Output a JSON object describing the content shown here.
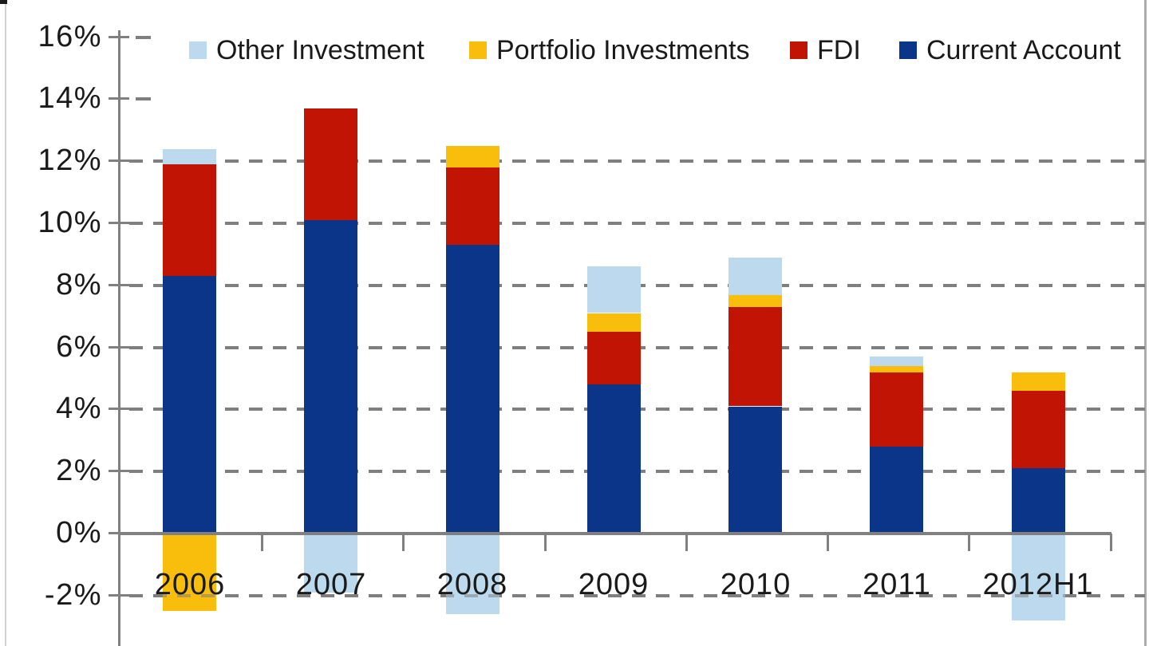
{
  "chart_data": {
    "type": "bar",
    "stacked": true,
    "title": "",
    "categories": [
      "2006",
      "2007",
      "2008",
      "2009",
      "2010",
      "2011",
      "2012H1"
    ],
    "series": [
      {
        "name": "Current Account",
        "color": "#0A3588",
        "values": [
          8.3,
          10.1,
          9.3,
          4.8,
          4.1,
          2.8,
          2.1
        ]
      },
      {
        "name": "FDI",
        "color": "#C11405",
        "values": [
          3.6,
          3.6,
          2.5,
          1.7,
          3.2,
          2.4,
          2.5
        ]
      },
      {
        "name": "Portfolio Investments",
        "color": "#F9BE0B",
        "values": [
          -2.5,
          0,
          0.7,
          0.6,
          0.4,
          0.2,
          0.6
        ]
      },
      {
        "name": "Other Investment",
        "color": "#BDD9EE",
        "values": [
          0.5,
          -1.9,
          -2.6,
          1.5,
          1.2,
          0.3,
          -2.8
        ]
      }
    ],
    "legend": {
      "position": "top",
      "entries": [
        "Other Investment",
        "Portfolio Investments",
        "FDI",
        "Current Account"
      ]
    },
    "y_axis": {
      "min": -3.2,
      "max": 16,
      "tick_step": 2,
      "unit": "%",
      "tick_labels": [
        "16%",
        "14%",
        "12%",
        "10%",
        "8%",
        "6%",
        "4%",
        "2%",
        "0%",
        "-2%"
      ]
    },
    "x_axis": {
      "labels": [
        "2006",
        "2007",
        "2008",
        "2009",
        "2010",
        "2011",
        "2012H1"
      ]
    },
    "grid": {
      "style": "dashed",
      "orientation": "horizontal",
      "color": "#7F7F7F",
      "full_lines_at": [
        12,
        10,
        8,
        6,
        4,
        2,
        -2
      ],
      "stub_dashes_at": [
        16,
        14
      ]
    },
    "baseline_value": 0,
    "axis_color": "#808080",
    "text_color": "#1a1a1a"
  }
}
